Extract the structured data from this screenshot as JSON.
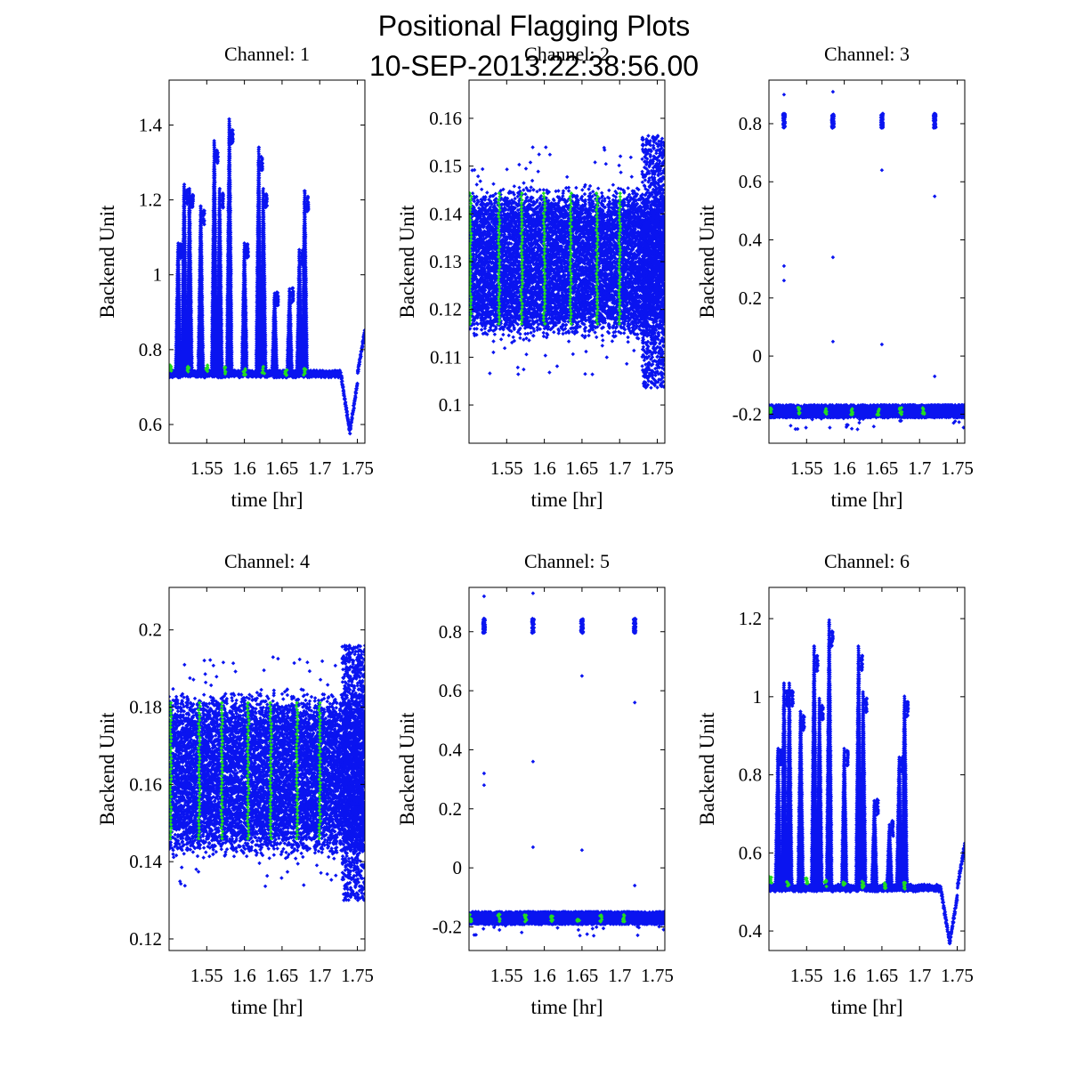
{
  "figure": {
    "title_line1": "Positional Flagging Plots",
    "title_line2": "10-SEP-2013:22:38:56.00"
  },
  "colors": {
    "main": "#0a14f0",
    "flag": "#22dd22",
    "axis": "#000000"
  },
  "chart_data": [
    {
      "type": "scatter",
      "title": "Channel: 1",
      "xlabel": "time [hr]",
      "ylabel": "Backend Unit",
      "xlim": [
        1.5,
        1.76
      ],
      "ylim": [
        0.55,
        1.52
      ],
      "xticks": [
        1.55,
        1.6,
        1.65,
        1.7,
        1.75
      ],
      "xtick_labels": [
        "1.55",
        "1.6",
        "1.65",
        "1.7",
        "1.75"
      ],
      "yticks": [
        0.6,
        0.8,
        1.0,
        1.2,
        1.4
      ],
      "ytick_labels": [
        "0.6",
        "0.8",
        "1",
        "1.2",
        "1.4"
      ],
      "series": [
        {
          "name": "data",
          "color": "#0a14f0",
          "style": "peaks",
          "baseline": 0.735,
          "peaks": [
            [
              1.512,
              1.1
            ],
            [
              1.52,
              1.26
            ],
            [
              1.527,
              1.25
            ],
            [
              1.542,
              1.2
            ],
            [
              1.56,
              1.38
            ],
            [
              1.567,
              1.25
            ],
            [
              1.58,
              1.44
            ],
            [
              1.6,
              1.1
            ],
            [
              1.619,
              1.36
            ],
            [
              1.625,
              1.25
            ],
            [
              1.64,
              0.96
            ],
            [
              1.66,
              0.97
            ],
            [
              1.673,
              1.08
            ],
            [
              1.68,
              1.24
            ]
          ],
          "dip": [
            1.74,
            0.58
          ],
          "end_value": 0.85
        },
        {
          "name": "flagged",
          "color": "#22dd22",
          "points": [
            [
              1.502,
              0.75
            ],
            [
              1.525,
              0.745
            ],
            [
              1.55,
              0.75
            ],
            [
              1.575,
              0.745
            ],
            [
              1.6,
              0.74
            ],
            [
              1.625,
              0.745
            ],
            [
              1.655,
              0.74
            ],
            [
              1.68,
              0.74
            ]
          ]
        }
      ]
    },
    {
      "type": "scatter",
      "title": "Channel: 2",
      "xlabel": "time [hr]",
      "ylabel": "Backend Unit",
      "xlim": [
        1.5,
        1.76
      ],
      "ylim": [
        0.092,
        0.168
      ],
      "xticks": [
        1.55,
        1.6,
        1.65,
        1.7,
        1.75
      ],
      "xtick_labels": [
        "1.55",
        "1.6",
        "1.65",
        "1.7",
        "1.75"
      ],
      "yticks": [
        0.1,
        0.11,
        0.12,
        0.13,
        0.14,
        0.15,
        0.16
      ],
      "ytick_labels": [
        "0.1",
        "0.11",
        "0.12",
        "0.13",
        "0.14",
        "0.15",
        "0.16"
      ],
      "series": [
        {
          "name": "data",
          "color": "#0a14f0",
          "style": "band",
          "center": 0.13,
          "half_width": 0.012,
          "spread": 0.024
        },
        {
          "name": "flagged",
          "color": "#22dd22",
          "style": "bars",
          "bars_x": [
            1.502,
            1.54,
            1.57,
            1.6,
            1.635,
            1.67,
            1.7
          ],
          "range": [
            0.117,
            0.145
          ]
        }
      ]
    },
    {
      "type": "scatter",
      "title": "Channel: 3",
      "xlabel": "time [hr]",
      "ylabel": "Backend Unit",
      "xlim": [
        1.5,
        1.76
      ],
      "ylim": [
        -0.3,
        0.95
      ],
      "xticks": [
        1.55,
        1.6,
        1.65,
        1.7,
        1.75
      ],
      "xtick_labels": [
        "1.55",
        "1.6",
        "1.65",
        "1.7",
        "1.75"
      ],
      "yticks": [
        -0.2,
        0.0,
        0.2,
        0.4,
        0.6,
        0.8
      ],
      "ytick_labels": [
        "-0.2",
        "0",
        "0.2",
        "0.4",
        "0.6",
        "0.8"
      ],
      "series": [
        {
          "name": "data",
          "color": "#0a14f0",
          "style": "baseline_clusters",
          "baseline": -0.19,
          "clusters": [
            [
              1.52,
              0.81
            ],
            [
              1.585,
              0.81
            ],
            [
              1.65,
              0.81
            ],
            [
              1.72,
              0.81
            ]
          ],
          "outliers": [
            [
              1.52,
              0.9
            ],
            [
              1.52,
              0.31
            ],
            [
              1.52,
              0.26
            ],
            [
              1.585,
              0.91
            ],
            [
              1.585,
              0.34
            ],
            [
              1.585,
              0.05
            ],
            [
              1.65,
              0.64
            ],
            [
              1.65,
              0.04
            ],
            [
              1.72,
              0.55
            ],
            [
              1.72,
              -0.07
            ]
          ]
        },
        {
          "name": "flagged",
          "color": "#22dd22",
          "points": [
            [
              1.502,
              -0.19
            ],
            [
              1.54,
              -0.19
            ],
            [
              1.575,
              -0.19
            ],
            [
              1.61,
              -0.19
            ],
            [
              1.645,
              -0.19
            ],
            [
              1.675,
              -0.19
            ],
            [
              1.705,
              -0.19
            ]
          ]
        }
      ]
    },
    {
      "type": "scatter",
      "title": "Channel: 4",
      "xlabel": "time [hr]",
      "ylabel": "Backend Unit",
      "xlim": [
        1.5,
        1.76
      ],
      "ylim": [
        0.117,
        0.211
      ],
      "xticks": [
        1.55,
        1.6,
        1.65,
        1.7,
        1.75
      ],
      "xtick_labels": [
        "1.55",
        "1.6",
        "1.65",
        "1.7",
        "1.75"
      ],
      "yticks": [
        0.12,
        0.14,
        0.16,
        0.18,
        0.2
      ],
      "ytick_labels": [
        "0.12",
        "0.14",
        "0.16",
        "0.18",
        "0.2"
      ],
      "series": [
        {
          "name": "data",
          "color": "#0a14f0",
          "style": "band",
          "center": 0.163,
          "half_width": 0.016,
          "spread": 0.03
        },
        {
          "name": "flagged",
          "color": "#22dd22",
          "style": "bars",
          "bars_x": [
            1.502,
            1.54,
            1.57,
            1.605,
            1.635,
            1.67,
            1.7
          ],
          "range": [
            0.146,
            0.182
          ]
        }
      ]
    },
    {
      "type": "scatter",
      "title": "Channel: 5",
      "xlabel": "time [hr]",
      "ylabel": "Backend Unit",
      "xlim": [
        1.5,
        1.76
      ],
      "ylim": [
        -0.28,
        0.95
      ],
      "xticks": [
        1.55,
        1.6,
        1.65,
        1.7,
        1.75
      ],
      "xtick_labels": [
        "1.55",
        "1.6",
        "1.65",
        "1.7",
        "1.75"
      ],
      "yticks": [
        -0.2,
        0.0,
        0.2,
        0.4,
        0.6,
        0.8
      ],
      "ytick_labels": [
        "-0.2",
        "0",
        "0.2",
        "0.4",
        "0.6",
        "0.8"
      ],
      "series": [
        {
          "name": "data",
          "color": "#0a14f0",
          "style": "baseline_clusters",
          "baseline": -0.17,
          "clusters": [
            [
              1.52,
              0.82
            ],
            [
              1.585,
              0.82
            ],
            [
              1.65,
              0.82
            ],
            [
              1.72,
              0.82
            ]
          ],
          "outliers": [
            [
              1.52,
              0.92
            ],
            [
              1.52,
              0.32
            ],
            [
              1.52,
              0.28
            ],
            [
              1.585,
              0.93
            ],
            [
              1.585,
              0.36
            ],
            [
              1.585,
              0.07
            ],
            [
              1.65,
              0.65
            ],
            [
              1.65,
              0.06
            ],
            [
              1.72,
              0.56
            ],
            [
              1.72,
              -0.06
            ]
          ]
        },
        {
          "name": "flagged",
          "color": "#22dd22",
          "points": [
            [
              1.502,
              -0.17
            ],
            [
              1.54,
              -0.17
            ],
            [
              1.575,
              -0.17
            ],
            [
              1.61,
              -0.17
            ],
            [
              1.645,
              -0.17
            ],
            [
              1.675,
              -0.17
            ],
            [
              1.705,
              -0.17
            ]
          ]
        }
      ]
    },
    {
      "type": "scatter",
      "title": "Channel: 6",
      "xlabel": "time [hr]",
      "ylabel": "Backend Unit",
      "xlim": [
        1.5,
        1.76
      ],
      "ylim": [
        0.35,
        1.28
      ],
      "xticks": [
        1.55,
        1.6,
        1.65,
        1.7,
        1.75
      ],
      "xtick_labels": [
        "1.55",
        "1.6",
        "1.65",
        "1.7",
        "1.75"
      ],
      "yticks": [
        0.4,
        0.6,
        0.8,
        1.0,
        1.2
      ],
      "ytick_labels": [
        "0.4",
        "0.6",
        "0.8",
        "1",
        "1.2"
      ],
      "series": [
        {
          "name": "data",
          "color": "#0a14f0",
          "style": "peaks",
          "baseline": 0.51,
          "peaks": [
            [
              1.512,
              0.88
            ],
            [
              1.52,
              1.05
            ],
            [
              1.527,
              1.05
            ],
            [
              1.542,
              0.98
            ],
            [
              1.56,
              1.15
            ],
            [
              1.567,
              1.01
            ],
            [
              1.58,
              1.22
            ],
            [
              1.6,
              0.88
            ],
            [
              1.619,
              1.15
            ],
            [
              1.625,
              1.03
            ],
            [
              1.64,
              0.74
            ],
            [
              1.66,
              0.68
            ],
            [
              1.673,
              0.86
            ],
            [
              1.68,
              1.02
            ]
          ],
          "dip": [
            1.74,
            0.37
          ],
          "end_value": 0.62
        },
        {
          "name": "flagged",
          "color": "#22dd22",
          "points": [
            [
              1.502,
              0.53
            ],
            [
              1.525,
              0.525
            ],
            [
              1.55,
              0.53
            ],
            [
              1.575,
              0.52
            ],
            [
              1.6,
              0.52
            ],
            [
              1.625,
              0.52
            ],
            [
              1.655,
              0.515
            ],
            [
              1.68,
              0.515
            ]
          ]
        }
      ]
    }
  ]
}
